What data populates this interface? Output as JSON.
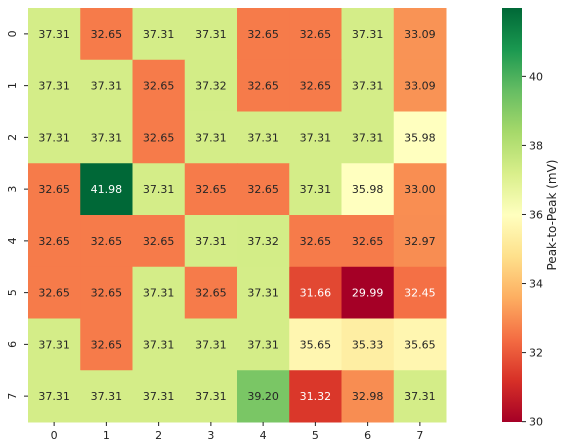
{
  "chart_data": {
    "type": "heatmap",
    "title": "",
    "xlabel": "",
    "ylabel": "",
    "x_categories": [
      "0",
      "1",
      "2",
      "3",
      "4",
      "5",
      "6",
      "7"
    ],
    "y_categories": [
      "0",
      "1",
      "2",
      "3",
      "4",
      "5",
      "6",
      "7"
    ],
    "values": [
      [
        37.31,
        32.65,
        37.31,
        37.31,
        32.65,
        32.65,
        37.31,
        33.09
      ],
      [
        37.31,
        37.31,
        32.65,
        37.32,
        32.65,
        32.65,
        37.31,
        33.09
      ],
      [
        37.31,
        37.31,
        32.65,
        37.31,
        37.31,
        37.31,
        37.31,
        35.98
      ],
      [
        32.65,
        41.98,
        37.31,
        32.65,
        32.65,
        37.31,
        35.98,
        33.0
      ],
      [
        32.65,
        32.65,
        32.65,
        37.31,
        37.32,
        32.65,
        32.65,
        32.97
      ],
      [
        32.65,
        32.65,
        37.31,
        32.65,
        37.31,
        31.66,
        29.99,
        32.45
      ],
      [
        37.31,
        32.65,
        37.31,
        37.31,
        37.31,
        35.65,
        35.33,
        35.65
      ],
      [
        37.31,
        37.31,
        37.31,
        37.31,
        39.2,
        31.32,
        32.98,
        37.31
      ]
    ],
    "value_format": "2dp",
    "colormap": "RdYlGn",
    "vmin": 29.99,
    "vmax": 41.98,
    "colorbar": {
      "label": "Peak-to-Peak (mV)",
      "ticks": [
        30,
        32,
        34,
        36,
        38,
        40
      ]
    }
  }
}
